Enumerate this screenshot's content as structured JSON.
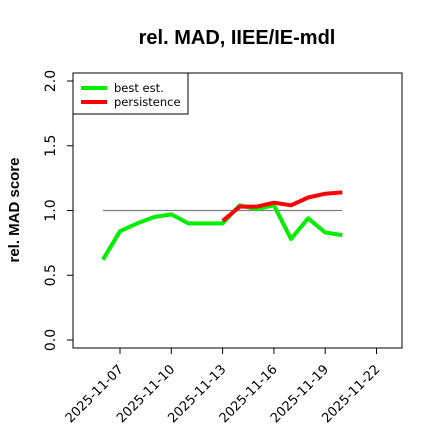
{
  "chart_data": {
    "type": "line",
    "title": "rel. MAD, IIEE/IE-mdl",
    "ylabel": "rel. MAD score",
    "xlabel": "",
    "ylim": [
      0.0,
      2.0
    ],
    "yticks": [
      0.0,
      0.5,
      1.0,
      1.5,
      2.0
    ],
    "ytick_labels": [
      "0.0",
      "0.5",
      "1.0",
      "1.5",
      "2.0"
    ],
    "xlim": [
      "2025-11-04",
      "2025-11-24"
    ],
    "xticks": [
      "2025-11-07",
      "2025-11-10",
      "2025-11-13",
      "2025-11-16",
      "2025-11-19",
      "2025-11-22"
    ],
    "grid": false,
    "legend": "top-left",
    "reference_line": {
      "y": 1.0,
      "x_start": "2025-11-06",
      "x_end": "2025-11-20",
      "color": "#808080"
    },
    "series": [
      {
        "name": "best est.",
        "color": "#00ee00",
        "x": [
          "2025-11-06",
          "2025-11-07",
          "2025-11-08",
          "2025-11-09",
          "2025-11-10",
          "2025-11-11",
          "2025-11-12",
          "2025-11-13",
          "2025-11-14",
          "2025-11-15",
          "2025-11-16",
          "2025-11-17",
          "2025-11-18",
          "2025-11-19",
          "2025-11-20"
        ],
        "y": [
          0.62,
          0.84,
          0.9,
          0.95,
          0.97,
          0.9,
          0.9,
          0.9,
          1.04,
          1.01,
          1.04,
          0.78,
          0.94,
          0.83,
          0.81
        ]
      },
      {
        "name": "persistence",
        "color": "#ff0000",
        "x": [
          "2025-11-13",
          "2025-11-14",
          "2025-11-15",
          "2025-11-16",
          "2025-11-17",
          "2025-11-18",
          "2025-11-19",
          "2025-11-20"
        ],
        "y": [
          0.92,
          1.03,
          1.03,
          1.06,
          1.04,
          1.1,
          1.13,
          1.14
        ]
      }
    ]
  }
}
